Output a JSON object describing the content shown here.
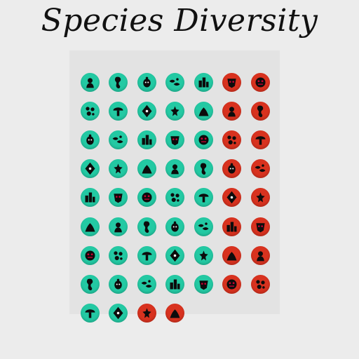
{
  "title": "Species Diversity",
  "colors": {
    "teal": "#23c9a3",
    "red": "#d8321f",
    "glyph": "#0c0c0c",
    "background": "#ececec"
  },
  "grid": {
    "rows": [
      [
        {
          "icon": "pointing-creature-icon",
          "color": "teal"
        },
        {
          "icon": "seahorse-icon",
          "color": "teal"
        },
        {
          "icon": "beetle-icon",
          "color": "teal"
        },
        {
          "icon": "fish-school-icon",
          "color": "teal"
        },
        {
          "icon": "city-icon",
          "color": "teal"
        },
        {
          "icon": "mask-icon",
          "color": "red"
        },
        {
          "icon": "blob-face-icon",
          "color": "red"
        }
      ],
      [
        {
          "icon": "bacteria-cluster-icon",
          "color": "teal"
        },
        {
          "icon": "mushrooms-icon",
          "color": "teal"
        },
        {
          "icon": "grinning-monster-icon",
          "color": "teal"
        },
        {
          "icon": "cells-icon",
          "color": "teal"
        },
        {
          "icon": "octopus-icon",
          "color": "teal"
        },
        {
          "icon": "heart-dots-icon",
          "color": "red"
        },
        {
          "icon": "flame-creature-icon",
          "color": "red"
        }
      ],
      [
        {
          "icon": "microbes-icon",
          "color": "teal"
        },
        {
          "icon": "eggs-icon",
          "color": "teal"
        },
        {
          "icon": "leafy-face-icon",
          "color": "teal"
        },
        {
          "icon": "stick-figure-icon",
          "color": "teal"
        },
        {
          "icon": "clock-house-icon",
          "color": "teal"
        },
        {
          "icon": "spiky-creature-icon",
          "color": "red"
        },
        {
          "icon": "crouching-figure-icon",
          "color": "red"
        }
      ],
      [
        {
          "icon": "seedlings-icon",
          "color": "teal"
        },
        {
          "icon": "leaves-icon",
          "color": "teal"
        },
        {
          "icon": "tent-icon",
          "color": "teal"
        },
        {
          "icon": "spores-icon",
          "color": "teal"
        },
        {
          "icon": "waffle-icon",
          "color": "teal"
        },
        {
          "icon": "dragon-icon",
          "color": "red"
        },
        {
          "icon": "eye-icon",
          "color": "red"
        }
      ],
      [
        {
          "icon": "tree-icon",
          "color": "teal"
        },
        {
          "icon": "tools-icon",
          "color": "teal"
        },
        {
          "icon": "pods-icon",
          "color": "teal"
        },
        {
          "icon": "monkey-face-icon",
          "color": "teal"
        },
        {
          "icon": "ringed-ball-icon",
          "color": "teal"
        },
        {
          "icon": "sun-virus-icon",
          "color": "red"
        },
        {
          "icon": "hand-icon",
          "color": "red"
        }
      ],
      [
        {
          "icon": "boots-icon",
          "color": "teal"
        },
        {
          "icon": "disc-icon",
          "color": "teal"
        },
        {
          "icon": "crown-mask-icon",
          "color": "teal"
        },
        {
          "icon": "waves-icon",
          "color": "teal"
        },
        {
          "icon": "coral-icon",
          "color": "teal"
        },
        {
          "icon": "skull-icon",
          "color": "red"
        },
        {
          "icon": "squid-icon",
          "color": "red"
        }
      ],
      [
        {
          "icon": "roots-icon",
          "color": "teal"
        },
        {
          "icon": "bird-icon",
          "color": "teal"
        },
        {
          "icon": "gear-creature-icon",
          "color": "teal"
        },
        {
          "icon": "scales-icon",
          "color": "teal"
        },
        {
          "icon": "sprouts-icon",
          "color": "teal"
        },
        {
          "icon": "lips-icon",
          "color": "red"
        },
        {
          "icon": "flower-skull-icon",
          "color": "red"
        }
      ],
      [
        {
          "icon": "bunny-icon",
          "color": "teal"
        },
        {
          "icon": "swirl-icon",
          "color": "teal"
        },
        {
          "icon": "planted-orb-icon",
          "color": "teal"
        },
        {
          "icon": "gorilla-icon",
          "color": "teal"
        },
        {
          "icon": "piranha-icon",
          "color": "teal"
        },
        {
          "icon": "bubbles-icon",
          "color": "red"
        },
        {
          "icon": "seaweed-icon",
          "color": "red"
        }
      ],
      [
        {
          "icon": "ghost-icon",
          "color": "teal"
        },
        {
          "icon": "tail-icon",
          "color": "teal"
        },
        {
          "icon": "robot-icon",
          "color": "red"
        },
        {
          "icon": "heart-icon",
          "color": "red"
        }
      ]
    ]
  }
}
